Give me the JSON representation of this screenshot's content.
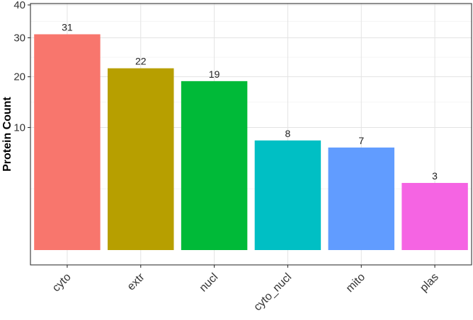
{
  "chart_data": {
    "type": "bar",
    "categories": [
      "cyto",
      "extr",
      "nucl",
      "cyto_nucl",
      "mito",
      "plas"
    ],
    "values": [
      31,
      22,
      19,
      8,
      7,
      3
    ],
    "data_labels": [
      "31",
      "22",
      "19",
      "8",
      "7",
      "3"
    ],
    "colors": [
      "#F8766D",
      "#B79F00",
      "#00BA38",
      "#00BFC4",
      "#619CFF",
      "#F564E3"
    ],
    "title": "",
    "xlabel": "",
    "ylabel": "Protein Count",
    "y_scale": "sqrt",
    "ylim": [
      0,
      40
    ],
    "yticks": [
      10,
      20,
      30,
      40
    ],
    "ytick_labels": [
      "10",
      "20",
      "30",
      "40"
    ],
    "grid": true,
    "legend": "none",
    "theme": "bw"
  }
}
